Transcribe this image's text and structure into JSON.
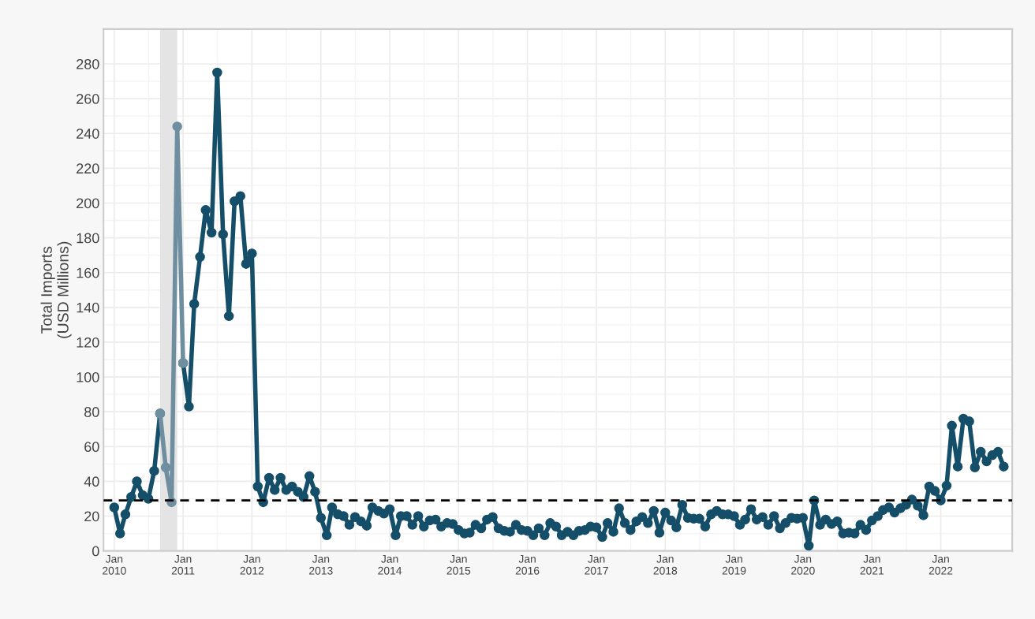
{
  "chart_data": {
    "type": "line",
    "ylabel": "Total Imports\n(USD Millions)",
    "x": [
      "2010-01",
      "2010-02",
      "2010-03",
      "2010-04",
      "2010-05",
      "2010-06",
      "2010-07",
      "2010-08",
      "2010-09",
      "2010-10",
      "2010-11",
      "2010-12",
      "2011-01",
      "2011-02",
      "2011-03",
      "2011-04",
      "2011-05",
      "2011-06",
      "2011-07",
      "2011-08",
      "2011-09",
      "2011-10",
      "2011-11",
      "2011-12",
      "2012-01",
      "2012-02",
      "2012-03",
      "2012-04",
      "2012-05",
      "2012-06",
      "2012-07",
      "2012-08",
      "2012-09",
      "2012-10",
      "2012-11",
      "2012-12",
      "2013-01",
      "2013-02",
      "2013-03",
      "2013-04",
      "2013-05",
      "2013-06",
      "2013-07",
      "2013-08",
      "2013-09",
      "2013-10",
      "2013-11",
      "2013-12",
      "2014-01",
      "2014-02",
      "2014-03",
      "2014-04",
      "2014-05",
      "2014-06",
      "2014-07",
      "2014-08",
      "2014-09",
      "2014-10",
      "2014-11",
      "2014-12",
      "2015-01",
      "2015-02",
      "2015-03",
      "2015-04",
      "2015-05",
      "2015-06",
      "2015-07",
      "2015-08",
      "2015-09",
      "2015-10",
      "2015-11",
      "2015-12",
      "2016-01",
      "2016-02",
      "2016-03",
      "2016-04",
      "2016-05",
      "2016-06",
      "2016-07",
      "2016-08",
      "2016-09",
      "2016-10",
      "2016-11",
      "2016-12",
      "2017-01",
      "2017-02",
      "2017-03",
      "2017-04",
      "2017-05",
      "2017-06",
      "2017-07",
      "2017-08",
      "2017-09",
      "2017-10",
      "2017-11",
      "2017-12",
      "2018-01",
      "2018-02",
      "2018-03",
      "2018-04",
      "2018-05",
      "2018-06",
      "2018-07",
      "2018-08",
      "2018-09",
      "2018-10",
      "2018-11",
      "2018-12",
      "2019-01",
      "2019-02",
      "2019-03",
      "2019-04",
      "2019-05",
      "2019-06",
      "2019-07",
      "2019-08",
      "2019-09",
      "2019-10",
      "2019-11",
      "2019-12",
      "2020-01",
      "2020-02",
      "2020-03",
      "2020-04",
      "2020-05",
      "2020-06",
      "2020-07",
      "2020-08",
      "2020-09",
      "2020-10",
      "2020-11",
      "2020-12",
      "2021-01",
      "2021-02",
      "2021-03",
      "2021-04",
      "2021-05",
      "2021-06",
      "2021-07",
      "2021-08",
      "2021-09",
      "2021-10",
      "2021-11",
      "2021-12",
      "2022-01",
      "2022-02",
      "2022-03",
      "2022-04",
      "2022-05",
      "2022-06",
      "2022-07",
      "2022-08",
      "2022-09",
      "2022-10",
      "2022-11",
      "2022-12"
    ],
    "series": [
      {
        "color": "#154e68",
        "values": [
          25,
          10,
          21,
          31,
          40,
          32,
          30,
          46,
          79,
          null,
          null,
          null,
          108,
          83,
          142,
          169,
          196,
          183,
          275,
          182,
          135,
          201,
          204,
          165,
          171,
          37,
          28,
          42,
          35,
          42,
          35,
          37,
          34,
          31,
          43,
          34,
          19,
          9,
          25,
          21,
          20,
          15,
          19.5,
          17,
          14.5,
          25,
          23,
          21.5,
          24,
          9,
          20,
          20,
          15,
          20,
          14,
          17.5,
          18,
          14,
          16,
          15.5,
          12,
          10,
          10.5,
          15,
          13,
          18,
          19.5,
          13,
          11.5,
          11,
          15,
          12,
          11.5,
          9,
          13,
          9,
          16,
          14,
          9,
          11,
          9,
          11.5,
          12,
          14,
          13.5,
          8,
          16,
          11,
          24.5,
          16,
          12,
          17,
          19.5,
          16,
          23,
          10.5,
          22,
          17.5,
          13.5,
          26.5,
          19,
          18.5,
          18.5,
          14,
          21,
          23,
          21,
          21,
          20,
          15,
          18,
          24,
          18,
          19.5,
          15,
          20,
          13,
          16,
          19,
          18.5,
          19,
          3,
          29,
          15,
          18,
          15.5,
          17,
          10,
          10.5,
          10,
          15,
          12,
          17.5,
          20,
          23.5,
          25,
          22,
          24.5,
          26.5,
          29.5,
          26,
          20.5,
          37,
          34.5,
          29,
          37.5,
          72,
          48.5,
          76,
          74.5,
          48,
          57,
          51.5,
          55,
          57,
          48.5
        ]
      },
      {
        "color": "#6f8fa0",
        "values": [
          null,
          null,
          null,
          null,
          null,
          null,
          null,
          null,
          79,
          48,
          28,
          244,
          108,
          null,
          null,
          null,
          null,
          null,
          null,
          null,
          null,
          null,
          null,
          null,
          null,
          null,
          null,
          null,
          null,
          null,
          null,
          null,
          null,
          null,
          null,
          null,
          null,
          null,
          null,
          null,
          null,
          null,
          null,
          null,
          null,
          null,
          null,
          null,
          null,
          null,
          null,
          null,
          null,
          null,
          null,
          null,
          null,
          null,
          null,
          null,
          null,
          null,
          null,
          null,
          null,
          null,
          null,
          null,
          null,
          null,
          null,
          null,
          null,
          null,
          null,
          null,
          null,
          null,
          null,
          null,
          null,
          null,
          null,
          null,
          null,
          null,
          null,
          null,
          null,
          null,
          null,
          null,
          null,
          null,
          null,
          null,
          null,
          null,
          null,
          null,
          null,
          null,
          null,
          null,
          null,
          null,
          null,
          null,
          null,
          null,
          null,
          null,
          null,
          null,
          null,
          null,
          null,
          null,
          null,
          null,
          null,
          null,
          null,
          null,
          null,
          null,
          null,
          null,
          null,
          null,
          null,
          null,
          null,
          null,
          null,
          null,
          null,
          null,
          null,
          null,
          null,
          null,
          null,
          null,
          null,
          null,
          null,
          null,
          null,
          null,
          null,
          null,
          null,
          null,
          null,
          null
        ]
      }
    ],
    "marker": "circle",
    "line_style": "solid",
    "xlim": [
      "2009-11-05",
      "2023-01-15"
    ],
    "xticks": [
      {
        "value": "2010-01",
        "label": "Jan\n2010"
      },
      {
        "value": "2011-01",
        "label": "Jan\n2011"
      },
      {
        "value": "2012-01",
        "label": "Jan\n2012"
      },
      {
        "value": "2013-01",
        "label": "Jan\n2013"
      },
      {
        "value": "2014-01",
        "label": "Jan\n2014"
      },
      {
        "value": "2015-01",
        "label": "Jan\n2015"
      },
      {
        "value": "2016-01",
        "label": "Jan\n2016"
      },
      {
        "value": "2017-01",
        "label": "Jan\n2017"
      },
      {
        "value": "2018-01",
        "label": "Jan\n2018"
      },
      {
        "value": "2019-01",
        "label": "Jan\n2019"
      },
      {
        "value": "2020-01",
        "label": "Jan\n2020"
      },
      {
        "value": "2021-01",
        "label": "Jan\n2021"
      },
      {
        "value": "2022-01",
        "label": "Jan\n2022"
      }
    ],
    "ylim": [
      0,
      300
    ],
    "yticks": [
      0,
      20,
      40,
      60,
      80,
      100,
      120,
      140,
      160,
      180,
      200,
      220,
      240,
      260,
      280
    ],
    "grid": true,
    "ref_lines": [
      {
        "axis": "y",
        "value": 29,
        "color": "#000000",
        "line_style": "dashed"
      }
    ],
    "bands": [
      {
        "axis": "x",
        "from": "2010-09",
        "to": "2010-12",
        "color": "#e4e4e4"
      }
    ]
  }
}
